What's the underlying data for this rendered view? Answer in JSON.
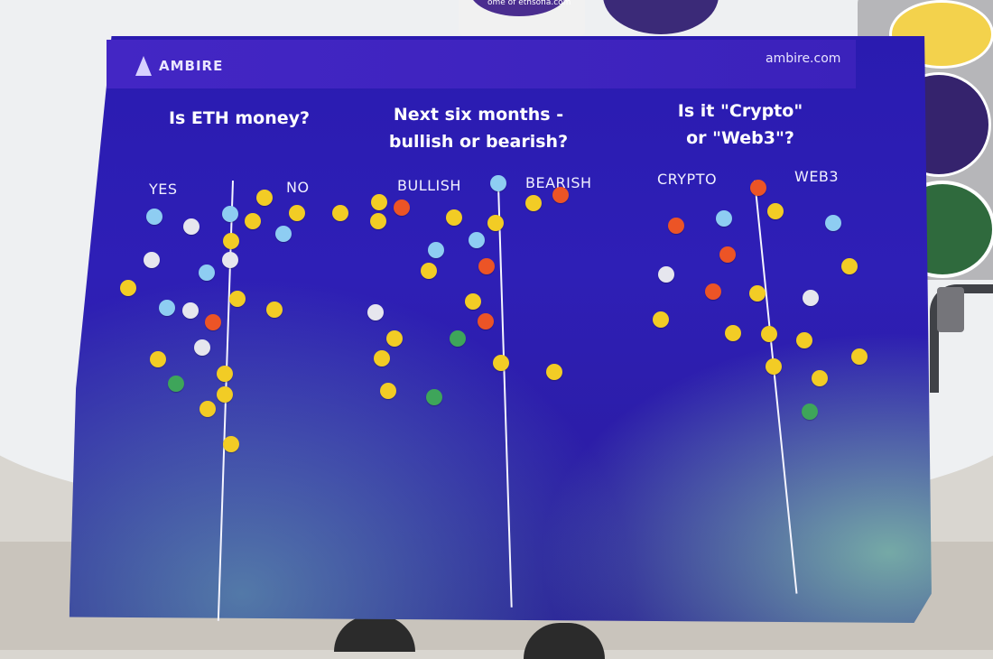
{
  "poster": {
    "brand": "AMBIRE",
    "website": "ambire.com",
    "sticker_text": "ome of ethsofia.com"
  },
  "questions": [
    {
      "title_line1": "Is ETH money?",
      "title_line2": "",
      "left_label": "YES",
      "right_label": "NO"
    },
    {
      "title_line1": "Next six months -",
      "title_line2": "bullish or bearish?",
      "left_label": "BULLISH",
      "right_label": "BEARISH"
    },
    {
      "title_line1": "Is it \"Crypto\"",
      "title_line2": "or \"Web3\"?",
      "left_label": "CRYPTO",
      "right_label": "WEB3"
    }
  ],
  "colors": {
    "poster_purple": "#2c1db0",
    "yellow_dot": "#f2cc25",
    "blue_dot": "#8ecdf2",
    "white_dot": "#e6e6ee",
    "orange_dot": "#ec5426",
    "green_dot": "#3ea55a"
  }
}
